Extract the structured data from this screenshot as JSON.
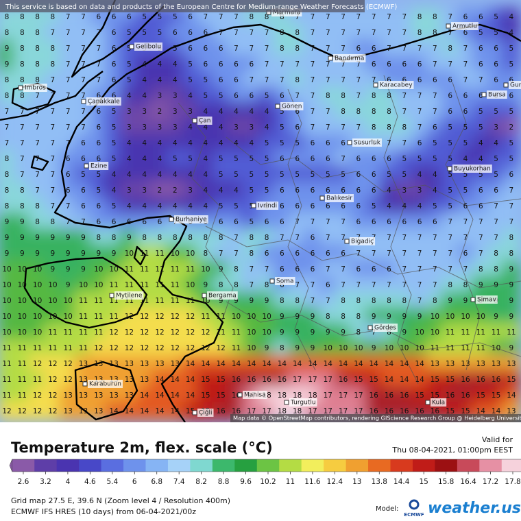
{
  "banner": "This service is based on data and products of the European Centre for Medium-range Weather Forecasts (ECMWF)",
  "attribution": "Map data © OpenStreetMap contributors, rendering GIScience Research Group @ Heidelberg University",
  "places": [
    "Marmara",
    "Armutlu",
    "Gelibolu",
    "Bandırma",
    "Imbros",
    "Karacabey",
    "Gurs",
    "Çanakkale",
    "Bursa",
    "Gönen",
    "Çan",
    "Susurluk",
    "Ezine",
    "Buyukorhan",
    "Balıkesir",
    "Ivrindi",
    "Burhaniye",
    "Bigadiç",
    "Soma",
    "Mytilene",
    "Bergama",
    "Simav",
    "Gördes",
    "Manisa",
    "Karaburun",
    "Turgutlu",
    "Kula",
    "Çiğli"
  ],
  "grid": [
    [
      8,
      8,
      8,
      8,
      7,
      7,
      6,
      6,
      6,
      5,
      5,
      5,
      6,
      7,
      7,
      7,
      8,
      8,
      8,
      7,
      7,
      7,
      7,
      7,
      7,
      7,
      7,
      8,
      8,
      7,
      6,
      6,
      5,
      4
    ],
    [
      8,
      8,
      8,
      7,
      7,
      7,
      7,
      6,
      5,
      5,
      5,
      6,
      6,
      6,
      7,
      7,
      7,
      7,
      8,
      8,
      7,
      7,
      7,
      7,
      7,
      7,
      7,
      8,
      8,
      7,
      6,
      5,
      5,
      4
    ],
    [
      9,
      8,
      8,
      8,
      7,
      7,
      7,
      6,
      5,
      5,
      5,
      5,
      6,
      6,
      6,
      7,
      7,
      7,
      8,
      8,
      7,
      7,
      7,
      6,
      6,
      7,
      7,
      7,
      7,
      8,
      7,
      6,
      6,
      5
    ],
    [
      9,
      8,
      8,
      8,
      7,
      7,
      7,
      6,
      5,
      4,
      4,
      4,
      5,
      6,
      6,
      6,
      6,
      7,
      7,
      7,
      7,
      7,
      7,
      7,
      6,
      6,
      6,
      6,
      7,
      7,
      7,
      6,
      6,
      5
    ],
    [
      8,
      8,
      8,
      7,
      7,
      7,
      7,
      6,
      5,
      4,
      4,
      4,
      5,
      5,
      6,
      6,
      7,
      7,
      7,
      8,
      7,
      7,
      7,
      7,
      7,
      6,
      6,
      6,
      6,
      6,
      7,
      7,
      6,
      6
    ],
    [
      8,
      8,
      7,
      7,
      7,
      7,
      6,
      6,
      4,
      4,
      3,
      3,
      4,
      5,
      5,
      6,
      6,
      5,
      6,
      7,
      7,
      8,
      8,
      7,
      8,
      8,
      7,
      7,
      7,
      6,
      6,
      6,
      6,
      6
    ],
    [
      7,
      7,
      7,
      7,
      7,
      7,
      6,
      5,
      3,
      3,
      2,
      3,
      3,
      4,
      4,
      4,
      4,
      4,
      5,
      6,
      7,
      7,
      8,
      8,
      8,
      8,
      7,
      7,
      7,
      6,
      6,
      5,
      5,
      5
    ],
    [
      7,
      7,
      7,
      7,
      7,
      7,
      6,
      5,
      3,
      3,
      3,
      3,
      4,
      4,
      4,
      3,
      3,
      4,
      5,
      6,
      7,
      7,
      7,
      7,
      8,
      8,
      8,
      7,
      6,
      5,
      5,
      5,
      3,
      2
    ],
    [
      7,
      7,
      7,
      7,
      7,
      6,
      6,
      5,
      4,
      4,
      4,
      4,
      4,
      4,
      4,
      4,
      4,
      5,
      5,
      5,
      6,
      6,
      6,
      7,
      7,
      7,
      7,
      6,
      5,
      5,
      5,
      4,
      4,
      5
    ],
    [
      8,
      7,
      7,
      7,
      6,
      6,
      6,
      5,
      4,
      4,
      4,
      5,
      5,
      4,
      5,
      5,
      5,
      5,
      6,
      6,
      6,
      6,
      7,
      6,
      6,
      6,
      5,
      5,
      5,
      5,
      4,
      4,
      5,
      5
    ],
    [
      8,
      7,
      7,
      7,
      6,
      5,
      5,
      4,
      4,
      4,
      4,
      4,
      4,
      4,
      5,
      5,
      5,
      5,
      5,
      5,
      5,
      5,
      5,
      6,
      6,
      5,
      5,
      4,
      4,
      5,
      5,
      5,
      5,
      6
    ],
    [
      8,
      8,
      7,
      7,
      6,
      6,
      5,
      4,
      3,
      3,
      2,
      2,
      3,
      4,
      4,
      4,
      5,
      5,
      6,
      6,
      6,
      6,
      6,
      6,
      6,
      4,
      3,
      3,
      4,
      5,
      5,
      6,
      6,
      7
    ],
    [
      8,
      8,
      8,
      7,
      7,
      6,
      6,
      5,
      4,
      4,
      4,
      4,
      4,
      4,
      5,
      5,
      5,
      6,
      6,
      6,
      6,
      6,
      6,
      6,
      5,
      4,
      4,
      4,
      5,
      5,
      6,
      6,
      7,
      7
    ],
    [
      9,
      9,
      8,
      8,
      7,
      7,
      6,
      6,
      6,
      6,
      6,
      7,
      6,
      6,
      6,
      6,
      5,
      6,
      6,
      7,
      7,
      7,
      7,
      6,
      6,
      6,
      6,
      6,
      6,
      7,
      7,
      7,
      7,
      7
    ],
    [
      9,
      9,
      9,
      9,
      9,
      9,
      8,
      8,
      9,
      8,
      8,
      8,
      8,
      8,
      8,
      7,
      8,
      8,
      7,
      7,
      6,
      7,
      7,
      7,
      7,
      7,
      7,
      7,
      7,
      7,
      7,
      7,
      7,
      8
    ],
    [
      9,
      9,
      9,
      9,
      9,
      9,
      9,
      9,
      10,
      11,
      11,
      10,
      10,
      8,
      7,
      7,
      8,
      6,
      6,
      6,
      6,
      6,
      6,
      7,
      7,
      7,
      7,
      7,
      7,
      7,
      6,
      7,
      8,
      8
    ],
    [
      10,
      10,
      10,
      9,
      9,
      9,
      10,
      10,
      11,
      11,
      11,
      11,
      11,
      10,
      9,
      8,
      7,
      7,
      6,
      6,
      6,
      7,
      7,
      6,
      6,
      6,
      7,
      7,
      7,
      7,
      7,
      8,
      8,
      9
    ],
    [
      10,
      10,
      10,
      10,
      9,
      10,
      10,
      11,
      11,
      11,
      11,
      11,
      10,
      9,
      8,
      8,
      7,
      8,
      6,
      7,
      7,
      6,
      7,
      7,
      7,
      7,
      7,
      7,
      7,
      8,
      8,
      9,
      9,
      9
    ],
    [
      10,
      10,
      10,
      10,
      10,
      11,
      11,
      11,
      11,
      11,
      11,
      11,
      11,
      10,
      9,
      9,
      9,
      9,
      8,
      8,
      7,
      7,
      8,
      8,
      8,
      8,
      8,
      7,
      8,
      9,
      9,
      9,
      9,
      9
    ],
    [
      10,
      10,
      10,
      10,
      10,
      11,
      11,
      11,
      12,
      12,
      12,
      12,
      12,
      11,
      11,
      10,
      10,
      10,
      9,
      9,
      9,
      8,
      8,
      8,
      9,
      9,
      9,
      9,
      10,
      10,
      10,
      10,
      9,
      9
    ],
    [
      10,
      10,
      10,
      11,
      11,
      11,
      11,
      12,
      12,
      12,
      12,
      12,
      12,
      12,
      11,
      11,
      10,
      10,
      9,
      9,
      9,
      9,
      9,
      8,
      7,
      8,
      9,
      10,
      10,
      11,
      11,
      11,
      11,
      11
    ],
    [
      11,
      11,
      11,
      11,
      11,
      11,
      12,
      12,
      12,
      12,
      12,
      12,
      12,
      12,
      12,
      11,
      10,
      9,
      8,
      9,
      9,
      10,
      10,
      10,
      9,
      10,
      10,
      10,
      11,
      11,
      11,
      11,
      10,
      9
    ],
    [
      11,
      11,
      12,
      12,
      12,
      13,
      13,
      13,
      13,
      13,
      13,
      13,
      14,
      14,
      14,
      14,
      14,
      14,
      14,
      14,
      14,
      14,
      14,
      14,
      14,
      14,
      14,
      14,
      13,
      13,
      13,
      13,
      13,
      13
    ],
    [
      11,
      11,
      11,
      12,
      12,
      13,
      13,
      13,
      13,
      13,
      14,
      14,
      14,
      15,
      15,
      16,
      16,
      16,
      16,
      17,
      17,
      17,
      16,
      15,
      15,
      14,
      14,
      14,
      15,
      15,
      16,
      16,
      16,
      15
    ],
    [
      11,
      11,
      12,
      12,
      13,
      13,
      13,
      13,
      13,
      14,
      14,
      14,
      14,
      15,
      15,
      16,
      17,
      18,
      18,
      18,
      18,
      17,
      17,
      17,
      16,
      16,
      16,
      15,
      15,
      16,
      16,
      15,
      15,
      14
    ],
    [
      12,
      12,
      12,
      12,
      13,
      13,
      13,
      14,
      14,
      14,
      14,
      14,
      15,
      15,
      16,
      16,
      17,
      17,
      18,
      18,
      17,
      17,
      17,
      17,
      16,
      16,
      16,
      16,
      16,
      15,
      15,
      14,
      14,
      13
    ]
  ],
  "legend": {
    "title": "Temperature 2m, flex. scale (°C)",
    "valid_label": "Valid for",
    "valid_time": "Thu 08-04-2021, 01:00pm EEST",
    "colorbar": {
      "ticks": [
        2.6,
        3.2,
        4,
        4.6,
        5.4,
        6,
        6.8,
        7.4,
        8.2,
        8.8,
        9.6,
        10.2,
        11,
        11.6,
        12.4,
        13,
        13.8,
        14.4,
        15,
        15.8,
        16.4,
        17.2,
        17.8
      ],
      "colors": [
        "#8a5aa8",
        "#5e3ea8",
        "#4a34b0",
        "#4848c8",
        "#5a6ee0",
        "#6e92ec",
        "#86b4f4",
        "#a6d2f8",
        "#7fd8d0",
        "#3cb86c",
        "#26a040",
        "#6cc444",
        "#b4dc44",
        "#f2ee5c",
        "#f6cc40",
        "#f0a030",
        "#e86a22",
        "#d83a1e",
        "#c01c18",
        "#9c1012",
        "#c84a5a",
        "#e690a4",
        "#f6d2dc"
      ]
    }
  },
  "footer": {
    "grid_info": "Grid map 27.5 E, 39.6 N (Zoom level 4 / Resolution 400m)",
    "model_run": "ECMWF IFS HRES (10 days) from 06-04-2021/00z",
    "model_label": "Model:",
    "model_name": "ECMWF",
    "brand": "weather.us"
  }
}
